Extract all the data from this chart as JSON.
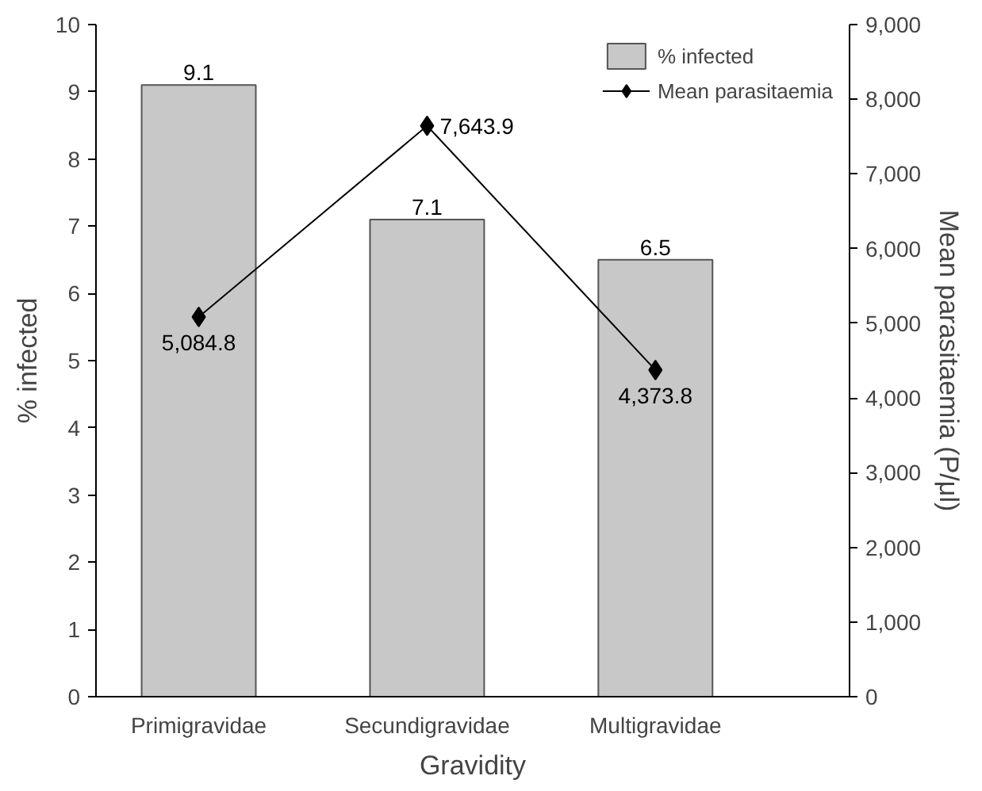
{
  "chart_data": {
    "type": "bar",
    "xlabel": "Gravidity",
    "ylabel": "% infected",
    "y2label": "Mean parasitaemia (P/μl)",
    "categories": [
      "Primigravidae",
      "Secundigravidae",
      "Multigravidae"
    ],
    "series": [
      {
        "name": "% infected",
        "color": "#c8c8c8",
        "values": [
          9.1,
          7.1,
          6.5
        ],
        "value_labels": [
          "9.1",
          "7.1",
          "6.5"
        ]
      },
      {
        "name": "Mean parasitaemia",
        "type": "line",
        "axis": "y2",
        "color": "#000000",
        "marker": "diamond",
        "values": [
          5084.8,
          7643.9,
          4373.8
        ],
        "value_labels": [
          "5,084.8",
          "7,643.9",
          "4,373.8"
        ]
      }
    ],
    "ylim": [
      0,
      10
    ],
    "yticks": [
      0,
      1,
      2,
      3,
      4,
      5,
      6,
      7,
      8,
      9,
      10
    ],
    "y2lim": [
      0,
      9000
    ],
    "y2ticks": [
      0,
      {
        "value": 1000,
        "label": "1,000"
      },
      {
        "value": 2000,
        "label": "2,000"
      },
      {
        "value": 3000,
        "label": "3,000"
      },
      {
        "value": 4000,
        "label": "4,000"
      },
      {
        "value": 5000,
        "label": "5,000"
      },
      {
        "value": 6000,
        "label": "6,000"
      },
      {
        "value": 7000,
        "label": "7,000"
      },
      {
        "value": 8000,
        "label": "8,000"
      },
      {
        "value": 9000,
        "label": "9,000"
      }
    ],
    "legend": "top right",
    "grid": false
  }
}
